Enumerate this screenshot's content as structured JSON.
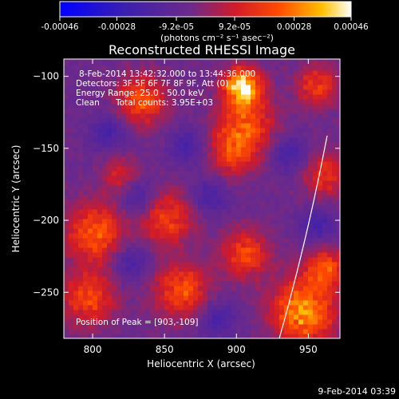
{
  "chart_data": {
    "type": "heatmap",
    "title": "Reconstructed RHESSI Image",
    "xlabel": "Heliocentric X (arcsec)",
    "ylabel": "Heliocentric Y (arcsec)",
    "xlim": [
      780,
      972
    ],
    "ylim": [
      -282,
      -88
    ],
    "x_ticks": [
      800,
      850,
      900,
      950
    ],
    "y_ticks": [
      -100,
      -150,
      -200,
      -250
    ],
    "colorbar": {
      "vmin": -0.00046,
      "vmax": 0.00046,
      "ticks": [
        -0.00046,
        -0.00028,
        -9.2e-05,
        9.2e-05,
        0.00028,
        0.00046
      ],
      "tick_labels": [
        "-0.00046",
        "-0.00028",
        "-9.2e-05",
        "9.2e-05",
        "0.00028",
        "0.00046"
      ],
      "unit_label": "(photons cm⁻² s⁻¹ asec⁻²)"
    },
    "annotations": {
      "time_range": "8-Feb-2014 13:42:32.000 to 13:44:36.000",
      "detectors": "Detectors: 3F 5F 6F 7F 8F 9F, Att (0)",
      "energy": "Energy Range: 25.0 - 50.0 keV",
      "method": "Clean",
      "counts": "Total counts: 3.95E+03",
      "peak": "Position of Peak = [903,-109]"
    },
    "peak": {
      "x": 903,
      "y": -109
    },
    "colors": {
      "low": "#0000ff",
      "mid": "#5a2a8e",
      "high": "#ff2a00",
      "peak": "#ffffff"
    }
  },
  "footer": {
    "timestamp": "9-Feb-2014 03:39"
  }
}
